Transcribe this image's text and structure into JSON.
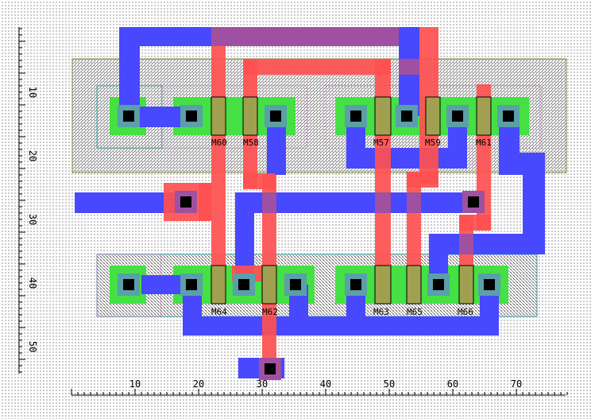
{
  "colors": {
    "metal1": "#4848ff",
    "poly": "#ff5050",
    "diffusion": "#44e044",
    "contact_ring": "#5aa0a8",
    "poly_contact_ring": "#a050a0",
    "contact": "#000000",
    "gate_overlap": "#a0a050",
    "metal_poly_overlap": "#a050a0"
  },
  "x_axis": {
    "ticks": [
      "10",
      "20",
      "30",
      "40",
      "50",
      "60",
      "70"
    ]
  },
  "y_axis": {
    "ticks": [
      "10",
      "20",
      "30",
      "40",
      "50"
    ]
  },
  "devices": {
    "top": [
      "M60",
      "M58",
      "M57",
      "M59",
      "M61"
    ],
    "bottom": [
      "M64",
      "M62",
      "M63",
      "M65",
      "M66"
    ]
  }
}
